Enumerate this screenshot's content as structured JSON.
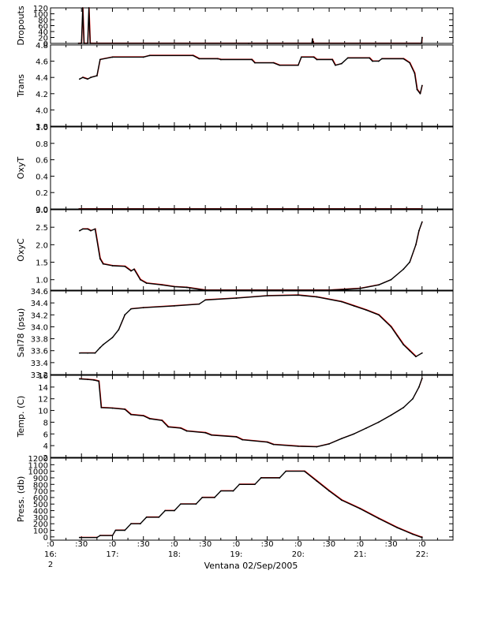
{
  "footer_label": "Ventana 02/Sep/2005",
  "x_ticks": [
    {
      "top": ":0",
      "mid": "16:",
      "bottom": "2"
    },
    {
      "top": ":30",
      "mid": "",
      "bottom": ""
    },
    {
      "top": ":0",
      "mid": "17:",
      "bottom": ""
    },
    {
      "top": ":30",
      "mid": "",
      "bottom": ""
    },
    {
      "top": ":0",
      "mid": "18:",
      "bottom": ""
    },
    {
      "top": ":30",
      "mid": "",
      "bottom": ""
    },
    {
      "top": ":0",
      "mid": "19:",
      "bottom": ""
    },
    {
      "top": ":30",
      "mid": "",
      "bottom": ""
    },
    {
      "top": ":0",
      "mid": "20:",
      "bottom": ""
    },
    {
      "top": ":30",
      "mid": "",
      "bottom": ""
    },
    {
      "top": ":0",
      "mid": "21:",
      "bottom": ""
    },
    {
      "top": ":30",
      "mid": "",
      "bottom": ""
    },
    {
      "top": ":0",
      "mid": "22:",
      "bottom": ""
    }
  ],
  "colors": {
    "main_series": "#000000",
    "raw_series": "#ff0000",
    "axes": "#000000"
  },
  "chart_data": [
    {
      "type": "line",
      "ylabel": "Dropouts",
      "ylim": [
        0,
        120
      ],
      "yticks": [
        0,
        20,
        40,
        60,
        80,
        100,
        120
      ],
      "tick_labels": [
        "0",
        "20",
        "40",
        "60",
        "80",
        "100",
        "120"
      ],
      "xlim": [
        16.0,
        22.5
      ],
      "series": [
        {
          "values": [
            [
              16.45,
              0
            ],
            [
              16.5,
              0
            ],
            [
              16.52,
              120
            ],
            [
              16.54,
              0
            ],
            [
              16.6,
              0
            ],
            [
              16.62,
              120
            ],
            [
              16.64,
              0
            ],
            [
              19.2,
              0
            ],
            [
              20.22,
              0
            ],
            [
              20.23,
              15
            ],
            [
              20.24,
              0
            ],
            [
              21.99,
              0
            ],
            [
              22.0,
              20
            ]
          ]
        }
      ]
    },
    {
      "type": "line",
      "ylabel": "Trans",
      "ylim": [
        3.8,
        4.8
      ],
      "yticks": [
        3.8,
        4.0,
        4.2,
        4.4,
        4.6,
        4.8
      ],
      "tick_labels": [
        "3.8",
        "4.0",
        "4.2",
        "4.4",
        "4.6",
        "4.8"
      ],
      "xlim": [
        16.0,
        22.5
      ],
      "series": [
        {
          "values": [
            [
              16.47,
              4.38
            ],
            [
              16.52,
              4.4
            ],
            [
              16.6,
              4.38
            ],
            [
              16.65,
              4.4
            ],
            [
              16.75,
              4.42
            ],
            [
              16.8,
              4.62
            ],
            [
              17.0,
              4.65
            ],
            [
              17.5,
              4.65
            ],
            [
              17.6,
              4.67
            ],
            [
              18.3,
              4.67
            ],
            [
              18.4,
              4.63
            ],
            [
              18.7,
              4.63
            ],
            [
              18.75,
              4.62
            ],
            [
              19.25,
              4.62
            ],
            [
              19.3,
              4.58
            ],
            [
              19.6,
              4.58
            ],
            [
              19.7,
              4.55
            ],
            [
              20.0,
              4.55
            ],
            [
              20.05,
              4.65
            ],
            [
              20.25,
              4.65
            ],
            [
              20.3,
              4.62
            ],
            [
              20.55,
              4.62
            ],
            [
              20.6,
              4.55
            ],
            [
              20.7,
              4.57
            ],
            [
              20.8,
              4.64
            ],
            [
              21.15,
              4.64
            ],
            [
              21.2,
              4.6
            ],
            [
              21.3,
              4.6
            ],
            [
              21.35,
              4.63
            ],
            [
              21.7,
              4.63
            ],
            [
              21.8,
              4.58
            ],
            [
              21.88,
              4.45
            ],
            [
              21.92,
              4.25
            ],
            [
              21.97,
              4.2
            ],
            [
              22.0,
              4.3
            ]
          ]
        }
      ]
    },
    {
      "type": "line",
      "ylabel": "OxyT",
      "ylim": [
        0.0,
        1.0
      ],
      "yticks": [
        0.0,
        0.2,
        0.4,
        0.6,
        0.8,
        1.0
      ],
      "tick_labels": [
        "0.0",
        "0.2",
        "0.4",
        "0.6",
        "0.8",
        "1.0"
      ],
      "xlim": [
        16.0,
        22.5
      ],
      "series": [
        {
          "values": [
            [
              16.45,
              -0.05
            ],
            [
              22.0,
              -0.05
            ]
          ]
        }
      ]
    },
    {
      "type": "line",
      "ylabel": "OxyC",
      "ylim": [
        0.7,
        3.0
      ],
      "yticks": [
        1.0,
        1.5,
        2.0,
        2.5,
        3.0
      ],
      "tick_labels": [
        "1.0",
        "1.5",
        "2.0",
        "2.5",
        "3.0"
      ],
      "xlim": [
        16.0,
        22.5
      ],
      "series": [
        {
          "values": [
            [
              16.47,
              2.4
            ],
            [
              16.52,
              2.45
            ],
            [
              16.6,
              2.45
            ],
            [
              16.65,
              2.4
            ],
            [
              16.72,
              2.45
            ],
            [
              16.8,
              1.6
            ],
            [
              16.85,
              1.45
            ],
            [
              17.0,
              1.4
            ],
            [
              17.2,
              1.38
            ],
            [
              17.3,
              1.25
            ],
            [
              17.35,
              1.3
            ],
            [
              17.45,
              1.0
            ],
            [
              17.55,
              0.9
            ],
            [
              17.8,
              0.85
            ],
            [
              18.0,
              0.8
            ],
            [
              18.2,
              0.78
            ],
            [
              18.5,
              0.7
            ],
            [
              19.0,
              0.68
            ],
            [
              19.5,
              0.67
            ],
            [
              20.0,
              0.67
            ],
            [
              20.5,
              0.67
            ],
            [
              21.0,
              0.75
            ],
            [
              21.3,
              0.85
            ],
            [
              21.5,
              1.0
            ],
            [
              21.7,
              1.3
            ],
            [
              21.8,
              1.5
            ],
            [
              21.9,
              2.0
            ],
            [
              21.95,
              2.4
            ],
            [
              22.0,
              2.65
            ]
          ]
        }
      ]
    },
    {
      "type": "line",
      "ylabel": "Sal78 (psu)",
      "ylim": [
        33.2,
        34.6
      ],
      "yticks": [
        33.2,
        33.4,
        33.6,
        33.8,
        34.0,
        34.2,
        34.4,
        34.6
      ],
      "tick_labels": [
        "33.2",
        "33.4",
        "33.6",
        "33.8",
        "34.0",
        "34.2",
        "34.4",
        "34.6"
      ],
      "xlim": [
        16.0,
        22.5
      ],
      "series": [
        {
          "values": [
            [
              16.47,
              33.56
            ],
            [
              16.6,
              33.56
            ],
            [
              16.72,
              33.56
            ],
            [
              16.8,
              33.65
            ],
            [
              16.85,
              33.7
            ],
            [
              17.0,
              33.82
            ],
            [
              17.1,
              33.95
            ],
            [
              17.2,
              34.2
            ],
            [
              17.3,
              34.3
            ],
            [
              17.5,
              34.32
            ],
            [
              18.0,
              34.35
            ],
            [
              18.4,
              34.38
            ],
            [
              18.5,
              34.45
            ],
            [
              19.0,
              34.48
            ],
            [
              19.5,
              34.52
            ],
            [
              20.0,
              34.53
            ],
            [
              20.3,
              34.5
            ],
            [
              20.7,
              34.42
            ],
            [
              20.9,
              34.35
            ],
            [
              21.1,
              34.28
            ],
            [
              21.3,
              34.2
            ],
            [
              21.5,
              34.0
            ],
            [
              21.6,
              33.85
            ],
            [
              21.7,
              33.7
            ],
            [
              21.8,
              33.6
            ],
            [
              21.9,
              33.5
            ],
            [
              22.0,
              33.56
            ]
          ]
        }
      ]
    },
    {
      "type": "line",
      "ylabel": "Temp. (C)",
      "ylim": [
        2,
        16
      ],
      "yticks": [
        2,
        4,
        6,
        8,
        10,
        12,
        14,
        16
      ],
      "tick_labels": [
        "2",
        "4",
        "6",
        "8",
        "10",
        "12",
        "14",
        "16"
      ],
      "xlim": [
        16.0,
        22.5
      ],
      "series": [
        {
          "values": [
            [
              16.47,
              15.4
            ],
            [
              16.6,
              15.3
            ],
            [
              16.7,
              15.2
            ],
            [
              16.78,
              15.0
            ],
            [
              16.82,
              10.5
            ],
            [
              17.0,
              10.4
            ],
            [
              17.2,
              10.2
            ],
            [
              17.3,
              9.3
            ],
            [
              17.5,
              9.1
            ],
            [
              17.6,
              8.6
            ],
            [
              17.8,
              8.3
            ],
            [
              17.9,
              7.2
            ],
            [
              18.1,
              7.0
            ],
            [
              18.2,
              6.5
            ],
            [
              18.5,
              6.2
            ],
            [
              18.6,
              5.8
            ],
            [
              19.0,
              5.5
            ],
            [
              19.1,
              5.0
            ],
            [
              19.5,
              4.6
            ],
            [
              19.6,
              4.2
            ],
            [
              20.0,
              3.9
            ],
            [
              20.3,
              3.8
            ],
            [
              20.5,
              4.3
            ],
            [
              20.7,
              5.2
            ],
            [
              20.9,
              6.0
            ],
            [
              21.1,
              7.0
            ],
            [
              21.3,
              8.0
            ],
            [
              21.5,
              9.2
            ],
            [
              21.7,
              10.5
            ],
            [
              21.85,
              12.0
            ],
            [
              21.95,
              14.0
            ],
            [
              22.0,
              15.5
            ]
          ]
        }
      ]
    },
    {
      "type": "line",
      "ylabel": "Press. (db)",
      "ylim": [
        -50,
        1200
      ],
      "yticks": [
        0,
        100,
        200,
        300,
        400,
        500,
        600,
        700,
        800,
        900,
        1000,
        1100,
        1200
      ],
      "tick_labels": [
        "0",
        "100",
        "200",
        "300",
        "400",
        "500",
        "600",
        "700",
        "800",
        "900",
        "1000",
        "1100",
        "1200"
      ],
      "xlim": [
        16.0,
        22.5
      ],
      "series": [
        {
          "values": [
            [
              16.47,
              -10
            ],
            [
              16.75,
              -10
            ],
            [
              16.8,
              20
            ],
            [
              17.0,
              20
            ],
            [
              17.05,
              100
            ],
            [
              17.2,
              100
            ],
            [
              17.3,
              200
            ],
            [
              17.45,
              200
            ],
            [
              17.55,
              300
            ],
            [
              17.75,
              300
            ],
            [
              17.85,
              400
            ],
            [
              18.0,
              400
            ],
            [
              18.1,
              500
            ],
            [
              18.35,
              500
            ],
            [
              18.45,
              600
            ],
            [
              18.65,
              600
            ],
            [
              18.75,
              700
            ],
            [
              18.95,
              700
            ],
            [
              19.05,
              800
            ],
            [
              19.3,
              800
            ],
            [
              19.4,
              900
            ],
            [
              19.7,
              900
            ],
            [
              19.8,
              1000
            ],
            [
              20.1,
              1000
            ],
            [
              20.3,
              850
            ],
            [
              20.5,
              700
            ],
            [
              20.7,
              560
            ],
            [
              21.0,
              430
            ],
            [
              21.3,
              280
            ],
            [
              21.6,
              140
            ],
            [
              21.85,
              40
            ],
            [
              22.0,
              -10
            ]
          ]
        }
      ]
    }
  ]
}
